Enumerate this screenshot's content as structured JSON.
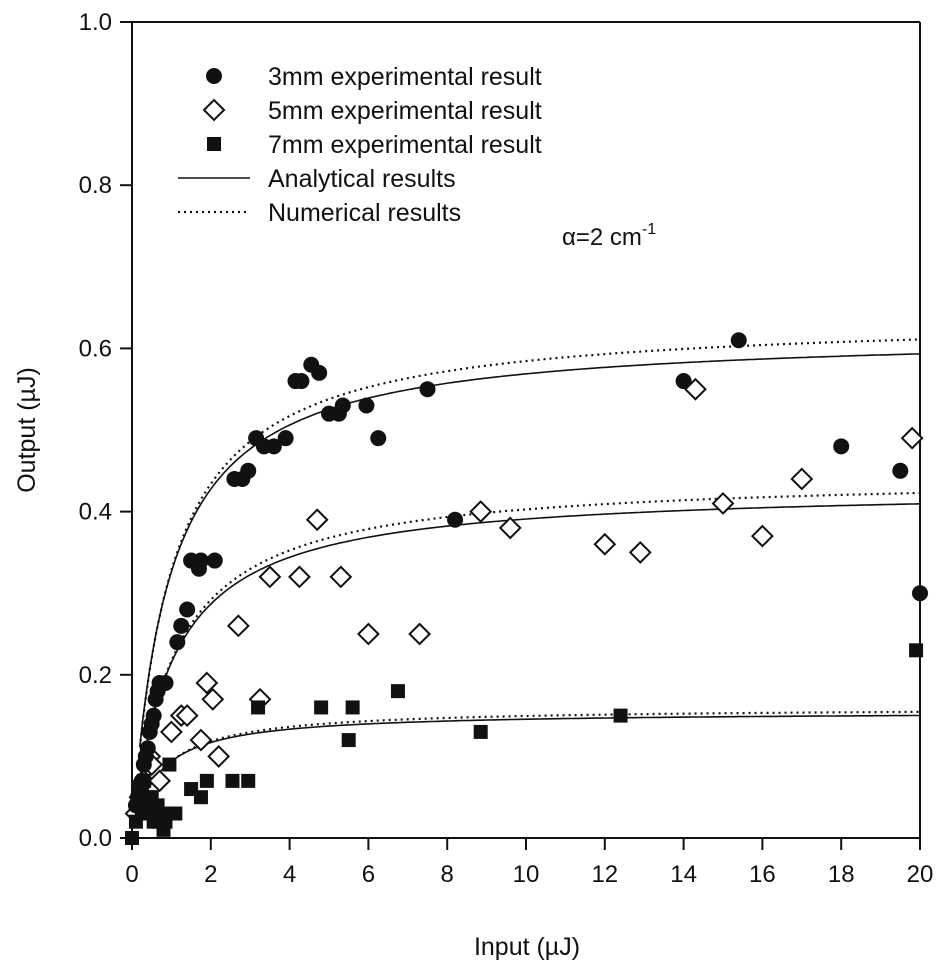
{
  "chart_data": {
    "type": "scatter",
    "xlabel": "Input (µJ)",
    "ylabel": "Output (µJ)",
    "xlim": [
      0,
      20
    ],
    "ylim": [
      0,
      1.0
    ],
    "xticks": [
      "0",
      "2",
      "4",
      "6",
      "8",
      "10",
      "12",
      "14",
      "16",
      "18",
      "20"
    ],
    "yticks": [
      "0.0",
      "0.2",
      "0.4",
      "0.6",
      "0.8",
      "1.0"
    ],
    "grid": false,
    "legend_position": "top-left",
    "annotation": {
      "text": "α=2 cm",
      "superscript": "-1"
    },
    "series": [
      {
        "name": "3mm experimental result",
        "marker": "filled-circle",
        "points": [
          [
            0.1,
            0.04
          ],
          [
            0.15,
            0.05
          ],
          [
            0.2,
            0.06
          ],
          [
            0.25,
            0.07
          ],
          [
            0.3,
            0.09
          ],
          [
            0.35,
            0.1
          ],
          [
            0.4,
            0.11
          ],
          [
            0.45,
            0.13
          ],
          [
            0.5,
            0.14
          ],
          [
            0.55,
            0.15
          ],
          [
            0.6,
            0.17
          ],
          [
            0.65,
            0.18
          ],
          [
            0.7,
            0.19
          ],
          [
            0.85,
            0.19
          ],
          [
            1.15,
            0.24
          ],
          [
            1.25,
            0.26
          ],
          [
            1.4,
            0.28
          ],
          [
            1.5,
            0.34
          ],
          [
            1.7,
            0.33
          ],
          [
            1.75,
            0.34
          ],
          [
            2.1,
            0.34
          ],
          [
            2.6,
            0.44
          ],
          [
            2.8,
            0.44
          ],
          [
            2.95,
            0.45
          ],
          [
            3.15,
            0.49
          ],
          [
            3.35,
            0.48
          ],
          [
            3.6,
            0.48
          ],
          [
            3.9,
            0.49
          ],
          [
            4.15,
            0.56
          ],
          [
            4.3,
            0.56
          ],
          [
            4.55,
            0.58
          ],
          [
            4.75,
            0.57
          ],
          [
            5.0,
            0.52
          ],
          [
            5.25,
            0.52
          ],
          [
            5.35,
            0.53
          ],
          [
            5.95,
            0.53
          ],
          [
            6.25,
            0.49
          ],
          [
            7.5,
            0.55
          ],
          [
            8.2,
            0.39
          ],
          [
            14.0,
            0.56
          ],
          [
            15.4,
            0.61
          ],
          [
            18.0,
            0.48
          ],
          [
            19.5,
            0.45
          ],
          [
            20.0,
            0.3
          ]
        ]
      },
      {
        "name": "5mm experimental result",
        "marker": "open-diamond",
        "points": [
          [
            0.1,
            0.03
          ],
          [
            0.2,
            0.05
          ],
          [
            0.3,
            0.07
          ],
          [
            0.45,
            0.1
          ],
          [
            0.5,
            0.09
          ],
          [
            0.7,
            0.07
          ],
          [
            1.0,
            0.13
          ],
          [
            1.25,
            0.15
          ],
          [
            1.4,
            0.15
          ],
          [
            1.75,
            0.12
          ],
          [
            1.9,
            0.19
          ],
          [
            2.05,
            0.17
          ],
          [
            2.2,
            0.1
          ],
          [
            2.7,
            0.26
          ],
          [
            3.25,
            0.17
          ],
          [
            3.5,
            0.32
          ],
          [
            4.25,
            0.32
          ],
          [
            4.7,
            0.39
          ],
          [
            5.3,
            0.32
          ],
          [
            6.0,
            0.25
          ],
          [
            7.3,
            0.25
          ],
          [
            8.85,
            0.4
          ],
          [
            9.6,
            0.38
          ],
          [
            12.0,
            0.36
          ],
          [
            12.9,
            0.35
          ],
          [
            14.3,
            0.55
          ],
          [
            15.0,
            0.41
          ],
          [
            16.0,
            0.37
          ],
          [
            17.0,
            0.44
          ],
          [
            19.8,
            0.49
          ]
        ]
      },
      {
        "name": "7mm experimental result",
        "marker": "filled-square",
        "points": [
          [
            0.0,
            0.0
          ],
          [
            0.1,
            0.02
          ],
          [
            0.15,
            0.05
          ],
          [
            0.2,
            0.06
          ],
          [
            0.25,
            0.03
          ],
          [
            0.3,
            0.07
          ],
          [
            0.35,
            0.04
          ],
          [
            0.4,
            0.05
          ],
          [
            0.45,
            0.03
          ],
          [
            0.5,
            0.05
          ],
          [
            0.55,
            0.02
          ],
          [
            0.6,
            0.03
          ],
          [
            0.65,
            0.04
          ],
          [
            0.7,
            0.02
          ],
          [
            0.75,
            0.03
          ],
          [
            0.8,
            0.01
          ],
          [
            0.85,
            0.02
          ],
          [
            0.95,
            0.09
          ],
          [
            1.1,
            0.03
          ],
          [
            1.5,
            0.06
          ],
          [
            1.75,
            0.05
          ],
          [
            1.9,
            0.07
          ],
          [
            2.55,
            0.07
          ],
          [
            2.95,
            0.07
          ],
          [
            3.2,
            0.16
          ],
          [
            4.8,
            0.16
          ],
          [
            5.5,
            0.12
          ],
          [
            5.6,
            0.16
          ],
          [
            6.75,
            0.18
          ],
          [
            8.85,
            0.13
          ],
          [
            12.4,
            0.15
          ],
          [
            19.9,
            0.23
          ]
        ]
      },
      {
        "name": "Analytical results",
        "line": "solid",
        "curves": [
          {
            "amplitude": 0.62,
            "half": 0.9
          },
          {
            "amplitude": 0.43,
            "half": 1.0
          },
          {
            "amplitude": 0.155,
            "half": 0.65
          }
        ]
      },
      {
        "name": "Numerical results",
        "line": "dotted",
        "curves": [
          {
            "amplitude": 0.64,
            "half": 0.95
          },
          {
            "amplitude": 0.445,
            "half": 1.05
          },
          {
            "amplitude": 0.16,
            "half": 0.7
          }
        ]
      }
    ]
  }
}
